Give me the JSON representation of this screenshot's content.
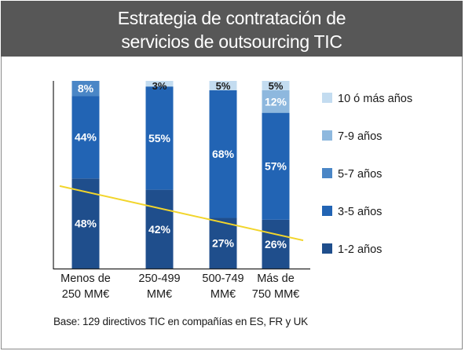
{
  "title": [
    "Estrategia de contratación de",
    "servicios de outsourcing TIC"
  ],
  "note": "Base: 129 directivos TIC en compañías en ES, FR y UK",
  "colors": {
    "title_bg": "#575757",
    "trend_line": "#f2d52b",
    "segments": [
      "#1f4e8c",
      "#2264b4",
      "#4a86c6",
      "#8eb8de",
      "#c3dcf0"
    ]
  },
  "chart_data": {
    "type": "bar",
    "stacked": true,
    "categories": [
      [
        "Menos de",
        "250 MM€"
      ],
      [
        "250-499",
        "MM€"
      ],
      [
        "500-749",
        "MM€"
      ],
      [
        "Más de",
        "750 MM€"
      ]
    ],
    "series": [
      {
        "name": "1-2 años",
        "values": [
          48,
          42,
          27,
          26
        ]
      },
      {
        "name": "3-5 años",
        "values": [
          44,
          55,
          68,
          57
        ]
      },
      {
        "name": "5-7 años",
        "values": [
          8,
          0,
          0,
          0
        ]
      },
      {
        "name": "7-9 años",
        "values": [
          0,
          0,
          0,
          12
        ]
      },
      {
        "name": "10 ó más años",
        "values": [
          0,
          3,
          5,
          5
        ]
      }
    ],
    "data_labels": [
      [
        "48%",
        "44%",
        "8%",
        "",
        ""
      ],
      [
        "42%",
        "55%",
        "",
        "",
        "3%"
      ],
      [
        "27%",
        "68%",
        "",
        "",
        "5%"
      ],
      [
        "26%",
        "57%",
        "",
        "12%",
        "5%"
      ]
    ],
    "legend_order": [
      "10 ó más años",
      "7-9 años",
      "5-7 años",
      "3-5 años",
      "1-2 años"
    ],
    "legend_position": "right",
    "ylim": [
      0,
      100
    ],
    "trend_line": {
      "start": 44,
      "end": 15
    },
    "grid": false
  }
}
